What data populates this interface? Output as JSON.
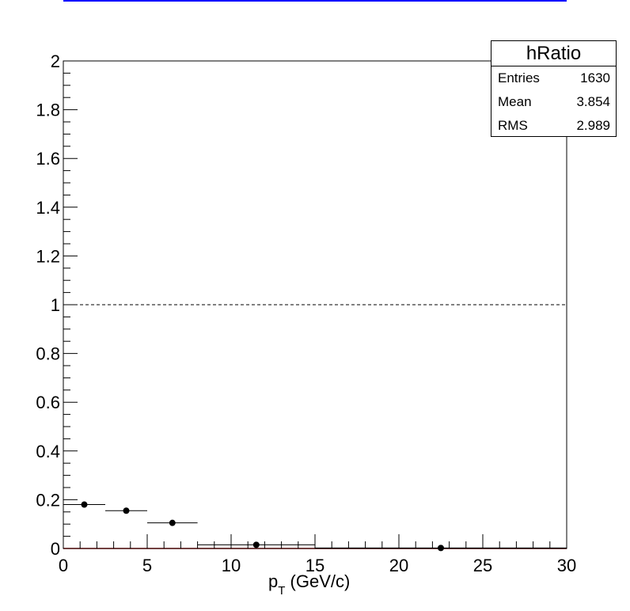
{
  "colors": {
    "marker": "#000000",
    "frame": "#000000",
    "reference_line": "#000000",
    "fit_line": "#cc0000",
    "top_line": "#0000ff"
  },
  "stats": {
    "title": "hRatio",
    "rows": [
      {
        "label": "Entries",
        "value": "1630"
      },
      {
        "label": "Mean",
        "value": "3.854"
      },
      {
        "label": "RMS",
        "value": "2.989"
      }
    ]
  },
  "chart_data": {
    "type": "scatter",
    "title": "",
    "xlabel_main": "p",
    "xlabel_sub": "T",
    "xlabel_rest": " (GeV/c)",
    "ylabel": "",
    "xlim": [
      0,
      30
    ],
    "ylim": [
      0,
      2
    ],
    "x_ticks": [
      0,
      5,
      10,
      15,
      20,
      25,
      30
    ],
    "x_tick_labels": [
      "0",
      "5",
      "10",
      "15",
      "20",
      "25",
      "30"
    ],
    "y_ticks": [
      0,
      0.2,
      0.4,
      0.6,
      0.8,
      1,
      1.2,
      1.4,
      1.6,
      1.8,
      2
    ],
    "y_tick_labels": [
      "0",
      "0.2",
      "0.4",
      "0.6",
      "0.8",
      "1",
      "1.2",
      "1.4",
      "1.6",
      "1.8",
      "2"
    ],
    "reference_line_y": 1,
    "grid": false,
    "series": [
      {
        "points": [
          {
            "x": 1.25,
            "xlow": 0,
            "xhigh": 2.5,
            "y": 0.18
          },
          {
            "x": 3.75,
            "xlow": 2.5,
            "xhigh": 5,
            "y": 0.155
          },
          {
            "x": 6.5,
            "xlow": 5,
            "xhigh": 8,
            "y": 0.105
          },
          {
            "x": 11.5,
            "xlow": 8,
            "xhigh": 15,
            "y": 0.015
          },
          {
            "x": 22.5,
            "xlow": 15,
            "xhigh": 30,
            "y": 0.002
          }
        ]
      }
    ]
  }
}
